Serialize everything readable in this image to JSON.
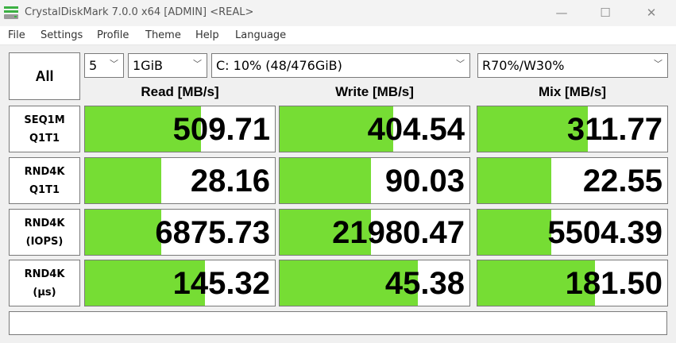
{
  "window": {
    "title": "CrystalDiskMark 7.0.0 x64 [ADMIN] <REAL>",
    "minimize": "—",
    "maximize": "☐",
    "close": "✕"
  },
  "menu": [
    "File",
    "Settings",
    "Profile",
    "Theme",
    "Help",
    "Language"
  ],
  "controls": {
    "all_label": "All",
    "count": "5",
    "size": "1GiB",
    "drive": "C: 10% (48/476GiB)",
    "mix": "R70%/W30%"
  },
  "headers": {
    "read": "Read [MB/s]",
    "write": "Write [MB/s]",
    "mix": "Mix [MB/s]"
  },
  "accent": "#76dd34",
  "rows": [
    {
      "label1": "SEQ1M",
      "label2": "Q1T1",
      "read": "509.71",
      "write": "404.54",
      "mix": "311.77",
      "fill": [
        0.61,
        0.6,
        0.58
      ]
    },
    {
      "label1": "RND4K",
      "label2": "Q1T1",
      "read": "28.16",
      "write": "90.03",
      "mix": "22.55",
      "fill": [
        0.4,
        0.48,
        0.39
      ]
    },
    {
      "label1": "RND4K",
      "label2": "(IOPS)",
      "read": "6875.73",
      "write": "21980.47",
      "mix": "5504.39",
      "fill": [
        0.4,
        0.48,
        0.39
      ]
    },
    {
      "label1": "RND4K",
      "label2": "(µs)",
      "read": "145.32",
      "write": "45.38",
      "mix": "181.50",
      "fill": [
        0.63,
        0.73,
        0.62
      ]
    }
  ],
  "status": ""
}
